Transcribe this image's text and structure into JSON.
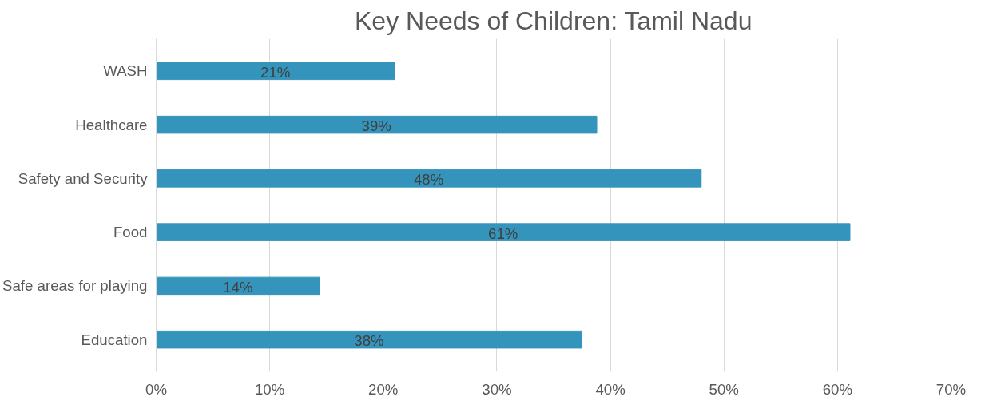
{
  "chart_data": {
    "type": "bar",
    "orientation": "horizontal",
    "title": "Key Needs of Children: Tamil Nadu",
    "categories": [
      "WASH",
      "Healthcare",
      "Safety and Security",
      "Food",
      "Safe areas for playing",
      "Education"
    ],
    "values": [
      21,
      38.8,
      48,
      61.1,
      14.4,
      37.5
    ],
    "value_labels": [
      "21%",
      "39%",
      "48%",
      "61%",
      "14%",
      "38%"
    ],
    "color": "#3594bb",
    "xlim": [
      0,
      70
    ],
    "xticks": [
      {
        "value": 0,
        "label": "0%"
      },
      {
        "value": 10,
        "label": "10%"
      },
      {
        "value": 20,
        "label": "20%"
      },
      {
        "value": 30,
        "label": "30%"
      },
      {
        "value": 40,
        "label": "40%"
      },
      {
        "value": 50,
        "label": "50%"
      },
      {
        "value": 60,
        "label": "60%"
      },
      {
        "value": 70,
        "label": "70%"
      }
    ],
    "grid": "x"
  }
}
